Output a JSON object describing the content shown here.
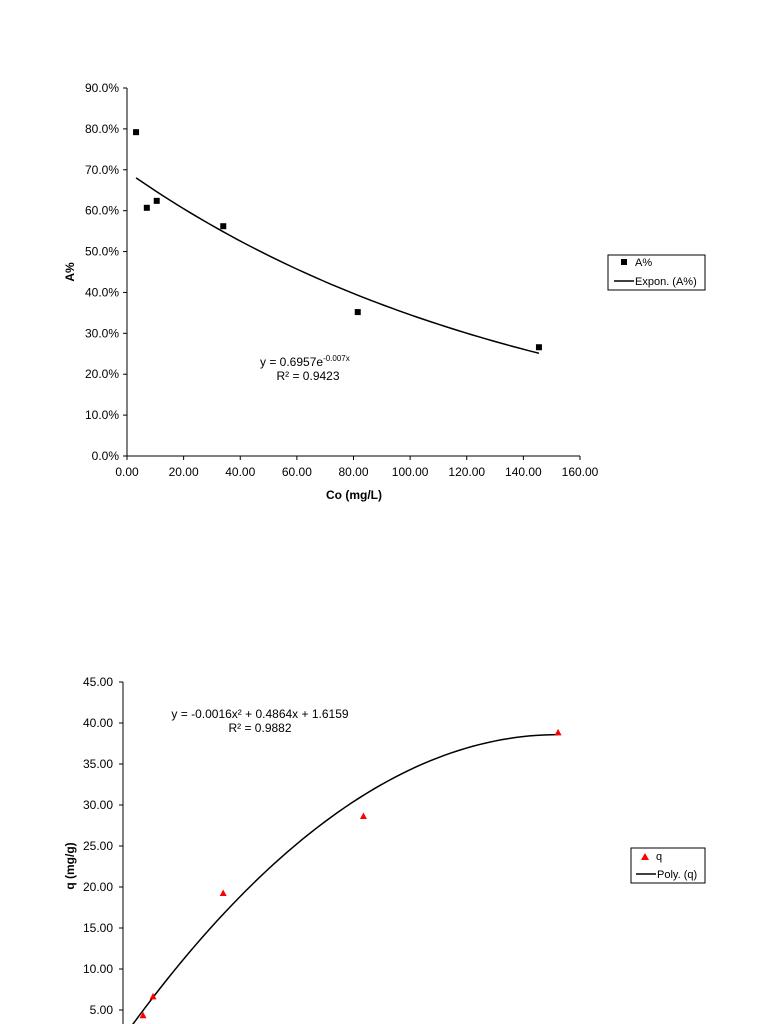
{
  "chart_data": [
    {
      "type": "scatter",
      "xlabel": "Co (mg/L)",
      "ylabel": "A%",
      "xlim": [
        0,
        160
      ],
      "ylim": [
        0,
        0.9
      ],
      "x_ticks": [
        "0.00",
        "20.00",
        "40.00",
        "60.00",
        "80.00",
        "100.00",
        "120.00",
        "140.00",
        "160.00"
      ],
      "y_ticks": [
        "0.0%",
        "10.0%",
        "20.0%",
        "30.0%",
        "40.0%",
        "50.0%",
        "60.0%",
        "70.0%",
        "80.0%",
        "90.0%"
      ],
      "series": [
        {
          "name": "A%",
          "marker": "square",
          "color": "#000000",
          "x": [
            3.2,
            7.0,
            10.5,
            34.0,
            81.5,
            145.5
          ],
          "y": [
            0.792,
            0.607,
            0.624,
            0.562,
            0.352,
            0.266
          ]
        }
      ],
      "trendline": {
        "name": "Expon. (A%)",
        "kind": "exponential",
        "a": 0.6957,
        "b": -0.007,
        "x_range": [
          3.2,
          145.5
        ],
        "equation_prefix": "y = 0.6957e",
        "equation_exp": "-0.007x",
        "r2_text": "R² = 0.9423"
      },
      "legend": [
        "A%",
        "Expon. (A%)"
      ],
      "grid": false,
      "legend_position": "right"
    },
    {
      "type": "scatter",
      "xlabel": "",
      "ylabel": "q (mg/g)",
      "xlim": [
        0,
        160
      ],
      "ylim": [
        0,
        45
      ],
      "y_ticks": [
        "5.00",
        "10.00",
        "15.00",
        "20.00",
        "25.00",
        "30.00",
        "35.00",
        "40.00",
        "45.00"
      ],
      "series": [
        {
          "name": "q",
          "marker": "triangle",
          "color": "#ff0000",
          "x": [
            7.0,
            10.5,
            35.0,
            84.0,
            152.0
          ],
          "y": [
            4.3,
            6.6,
            19.2,
            28.6,
            38.8
          ]
        }
      ],
      "trendline": {
        "name": "Poly. (q)",
        "kind": "polynomial",
        "coeffs": [
          -0.0016,
          0.4864,
          1.6159
        ],
        "x_range": [
          3.0,
          152.0
        ],
        "equation_text": "y = -0.0016x² + 0.4864x + 1.6159",
        "r2_text": "R² = 0.9882"
      },
      "legend": [
        "q",
        "Poly. (q)"
      ],
      "grid": false,
      "legend_position": "right"
    }
  ]
}
